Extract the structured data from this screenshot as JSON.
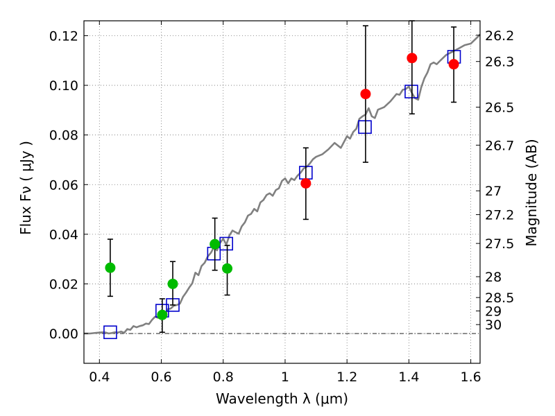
{
  "chart_data": {
    "type": "scatter",
    "xlabel": "Wavelength  λ (μm)",
    "ylabel": "Flux  Fν  ( μJy )",
    "ylabel_right": "Magnitude (AB)",
    "xlim": [
      0.35,
      1.63
    ],
    "ylim": [
      -0.012,
      0.126
    ],
    "x_ticks": [
      0.4,
      0.6,
      0.8,
      1.0,
      1.2,
      1.4,
      1.6
    ],
    "x_tick_labels": [
      "0.4",
      "0.6",
      "0.8",
      "1",
      "1.2",
      "1.4",
      "1.6"
    ],
    "y_ticks": [
      0.0,
      0.02,
      0.04,
      0.06,
      0.08,
      0.1,
      0.12
    ],
    "y_tick_labels": [
      "0.00",
      "0.02",
      "0.04",
      "0.06",
      "0.08",
      "0.10",
      "0.12"
    ],
    "right_ticks": [
      {
        "label": "26.2",
        "flux": 0.1202
      },
      {
        "label": "26.3",
        "flux": 0.1096
      },
      {
        "label": "26.5",
        "flux": 0.0912
      },
      {
        "label": "26.7",
        "flux": 0.0759
      },
      {
        "label": "27",
        "flux": 0.0575
      },
      {
        "label": "27.2",
        "flux": 0.0479
      },
      {
        "label": "27.5",
        "flux": 0.0363
      },
      {
        "label": "28",
        "flux": 0.0229
      },
      {
        "label": "28.5",
        "flux": 0.0145
      },
      {
        "label": "29",
        "flux": 0.0091
      },
      {
        "label": "30",
        "flux": 0.0036
      }
    ],
    "grid": true,
    "zero_line": true,
    "colors": {
      "model": "#808080",
      "hst": "#00bb00",
      "spitzer": "#ff0000",
      "synthetic": "#0000cc",
      "errorbar": "#000000"
    },
    "series": [
      {
        "kind": "line",
        "x": [
          0.35,
          0.37,
          0.39,
          0.41,
          0.42,
          0.43,
          0.44,
          0.45,
          0.46,
          0.47,
          0.48,
          0.49,
          0.5,
          0.51,
          0.52,
          0.53,
          0.54,
          0.55,
          0.56,
          0.57,
          0.58,
          0.59,
          0.6,
          0.61,
          0.62,
          0.63,
          0.64,
          0.65,
          0.66,
          0.67,
          0.68,
          0.69,
          0.7,
          0.71,
          0.72,
          0.73,
          0.74,
          0.75,
          0.76,
          0.77,
          0.78,
          0.79,
          0.8,
          0.81,
          0.82,
          0.83,
          0.84,
          0.85,
          0.86,
          0.87,
          0.88,
          0.89,
          0.9,
          0.91,
          0.92,
          0.93,
          0.94,
          0.95,
          0.96,
          0.97,
          0.98,
          0.99,
          1.0,
          1.01,
          1.02,
          1.03,
          1.04,
          1.05,
          1.06,
          1.07,
          1.08,
          1.09,
          1.1,
          1.12,
          1.14,
          1.16,
          1.18,
          1.2,
          1.21,
          1.22,
          1.23,
          1.24,
          1.25,
          1.26,
          1.27,
          1.28,
          1.29,
          1.3,
          1.32,
          1.34,
          1.36,
          1.37,
          1.38,
          1.39,
          1.4,
          1.41,
          1.42,
          1.43,
          1.44,
          1.45,
          1.46,
          1.47,
          1.48,
          1.49,
          1.5,
          1.52,
          1.54,
          1.56,
          1.58,
          1.6,
          1.62,
          1.63
        ],
        "y": [
          0.0,
          0.0,
          0.0003,
          0.0005,
          0.0004,
          0.0,
          0.0002,
          0.0005,
          0.0004,
          0.0008,
          0.0003,
          0.0018,
          0.0015,
          0.003,
          0.0025,
          0.003,
          0.0033,
          0.004,
          0.0038,
          0.0055,
          0.0068,
          0.0063,
          0.008,
          0.0065,
          0.0098,
          0.01,
          0.0112,
          0.0115,
          0.012,
          0.0148,
          0.0165,
          0.0185,
          0.0202,
          0.0245,
          0.0235,
          0.0272,
          0.0285,
          0.031,
          0.0325,
          0.0348,
          0.0335,
          0.0365,
          0.0382,
          0.0358,
          0.0395,
          0.0415,
          0.0408,
          0.0402,
          0.0432,
          0.0448,
          0.0475,
          0.0482,
          0.0502,
          0.0492,
          0.0528,
          0.0538,
          0.0558,
          0.0565,
          0.0555,
          0.0578,
          0.0585,
          0.0615,
          0.0625,
          0.0605,
          0.0625,
          0.0618,
          0.0636,
          0.0648,
          0.0665,
          0.0672,
          0.0685,
          0.0702,
          0.0712,
          0.0722,
          0.0742,
          0.0768,
          0.0748,
          0.0795,
          0.0785,
          0.0812,
          0.0825,
          0.0865,
          0.0875,
          0.0882,
          0.0908,
          0.0875,
          0.0868,
          0.0902,
          0.0912,
          0.0935,
          0.0965,
          0.0962,
          0.0982,
          0.0985,
          0.0995,
          0.0968,
          0.0948,
          0.0942,
          0.0992,
          0.1028,
          0.1052,
          0.1085,
          0.1092,
          0.1085,
          0.1098,
          0.1122,
          0.1135,
          0.1148,
          0.1162,
          0.1168,
          0.1192,
          0.1205
        ]
      },
      {
        "kind": "points_with_errors",
        "marker": "circle",
        "x": [
          0.435,
          0.603,
          0.637,
          0.773,
          0.813
        ],
        "y": [
          0.0265,
          0.0075,
          0.02,
          0.036,
          0.0262
        ],
        "yerr_low": [
          0.015,
          0.0005,
          0.0115,
          0.0255,
          0.0155
        ],
        "yerr_high": [
          0.038,
          0.014,
          0.029,
          0.0465,
          0.0355
        ]
      },
      {
        "kind": "points_with_errors",
        "marker": "circle",
        "x": [
          1.067,
          1.26,
          1.41,
          1.545
        ],
        "y": [
          0.0605,
          0.0965,
          0.111,
          0.1085
        ],
        "yerr_low": [
          0.046,
          0.069,
          0.0885,
          0.0932
        ],
        "yerr_high": [
          0.0748,
          0.124,
          0.126,
          0.1235
        ]
      },
      {
        "kind": "points",
        "marker": "square",
        "x": [
          0.435,
          0.603,
          0.637,
          0.77,
          0.81,
          1.067,
          1.258,
          1.408,
          1.546
        ],
        "y": [
          0.0005,
          0.0092,
          0.0115,
          0.0322,
          0.0362,
          0.0648,
          0.0832,
          0.0975,
          0.1115
        ]
      }
    ]
  }
}
